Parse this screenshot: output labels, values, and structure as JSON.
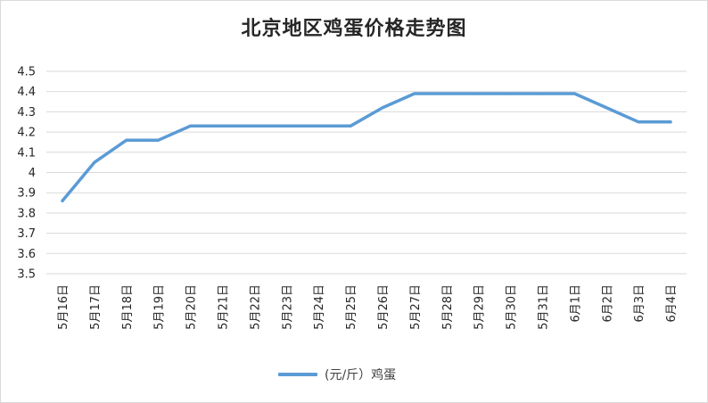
{
  "chart_data": {
    "type": "line",
    "title": "北京地区鸡蛋价格走势图",
    "xlabel": "",
    "ylabel": "",
    "ylim": [
      3.5,
      4.5
    ],
    "yticks": [
      "4.5",
      "4.4",
      "4.3",
      "4.2",
      "4.1",
      "4",
      "3.9",
      "3.8",
      "3.7",
      "3.6",
      "3.5"
    ],
    "grid": true,
    "legend_position": "bottom",
    "categories": [
      "5月16日",
      "5月17日",
      "5月18日",
      "5月19日",
      "5月20日",
      "5月21日",
      "5月22日",
      "5月23日",
      "5月24日",
      "5月25日",
      "5月26日",
      "5月27日",
      "5月28日",
      "5月29日",
      "5月30日",
      "5月31日",
      "6月1日",
      "6月2日",
      "6月3日",
      "6月4日"
    ],
    "series": [
      {
        "name": "(元/斤）鸡蛋",
        "color": "#5b9bd5",
        "values": [
          3.86,
          4.05,
          4.16,
          4.16,
          4.23,
          4.23,
          4.23,
          4.23,
          4.23,
          4.23,
          4.32,
          4.39,
          4.39,
          4.39,
          4.39,
          4.39,
          4.39,
          4.32,
          4.25,
          4.25
        ]
      }
    ]
  }
}
